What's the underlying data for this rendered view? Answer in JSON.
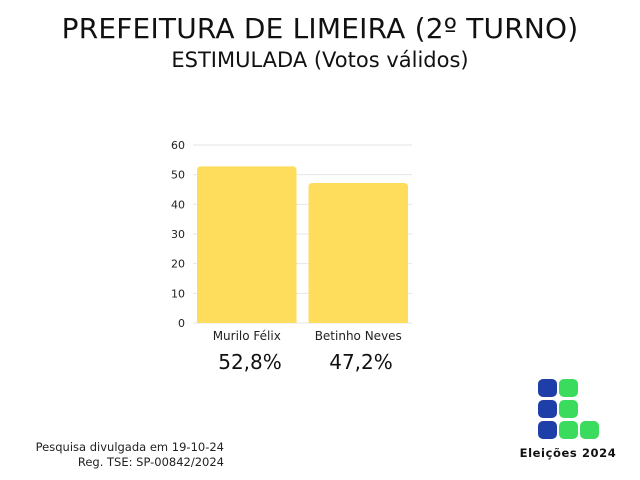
{
  "chart_data": {
    "type": "bar",
    "title": "PREFEITURA DE LIMEIRA (2º TURNO)",
    "subtitle": "ESTIMULADA (Votos válidos)",
    "categories": [
      "Murilo Félix",
      "Betinho Neves"
    ],
    "values": [
      52.8,
      47.2
    ],
    "value_labels": [
      "52,8%",
      "47,2%"
    ],
    "ylim": [
      0,
      60
    ],
    "yticks": [
      0,
      10,
      20,
      30,
      40,
      50,
      60
    ],
    "grid": true,
    "bar_color": "#FFDD5C",
    "grid_color": "#e6e6e6"
  },
  "footnote": {
    "line1": "Pesquisa divulgada em 19-10-24",
    "line2": "Reg. TSE: SP-00842/2024"
  },
  "logo": {
    "label": "Eleições 2024",
    "colors": {
      "blue": "#1F3FA8",
      "green": "#3BDB5E"
    }
  }
}
